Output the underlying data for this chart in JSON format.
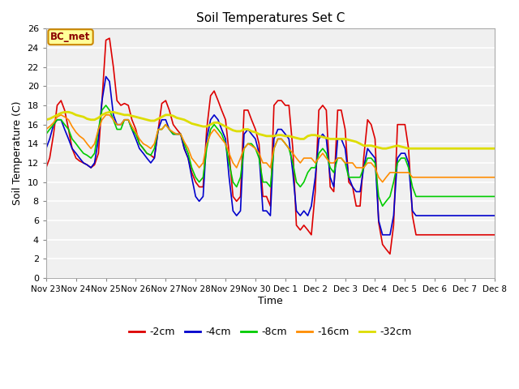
{
  "title": "Soil Temperatures Set C",
  "xlabel": "Time",
  "ylabel": "Soil Temperature (C)",
  "ylim": [
    0,
    26
  ],
  "xlim": [
    0,
    15
  ],
  "fig_bg": "#ffffff",
  "plot_bg": "#f0f0f0",
  "annotation_text": "BC_met",
  "annotation_bg": "#ffff99",
  "annotation_border": "#cc8800",
  "tick_labels": [
    "Nov 23",
    "Nov 24",
    "Nov 25",
    "Nov 26",
    "Nov 27",
    "Nov 28",
    "Nov 29",
    "Nov 30",
    "Dec 1",
    "Dec 2",
    "Dec 3",
    "Dec 4",
    "Dec 5",
    "Dec 6",
    "Dec 7",
    "Dec 8"
  ],
  "series_order": [
    "-2cm",
    "-4cm",
    "-8cm",
    "-16cm",
    "-32cm"
  ],
  "series": {
    "-2cm": {
      "color": "#dd0000",
      "lw": 1.2,
      "x": [
        0,
        0.12,
        0.25,
        0.37,
        0.5,
        0.62,
        0.75,
        0.87,
        1.0,
        1.12,
        1.25,
        1.37,
        1.5,
        1.62,
        1.75,
        1.87,
        2.0,
        2.12,
        2.25,
        2.37,
        2.5,
        2.62,
        2.75,
        2.87,
        3.0,
        3.12,
        3.25,
        3.37,
        3.5,
        3.62,
        3.75,
        3.87,
        4.0,
        4.12,
        4.25,
        4.37,
        4.5,
        4.62,
        4.75,
        4.87,
        5.0,
        5.12,
        5.25,
        5.37,
        5.5,
        5.62,
        5.75,
        5.87,
        6.0,
        6.12,
        6.25,
        6.37,
        6.5,
        6.62,
        6.75,
        6.87,
        7.0,
        7.12,
        7.25,
        7.37,
        7.5,
        7.62,
        7.75,
        7.87,
        8.0,
        8.12,
        8.25,
        8.37,
        8.5,
        8.62,
        8.75,
        8.87,
        9.0,
        9.12,
        9.25,
        9.37,
        9.5,
        9.62,
        9.75,
        9.87,
        10.0,
        10.12,
        10.25,
        10.37,
        10.5,
        10.62,
        10.75,
        10.87,
        11.0,
        11.12,
        11.25,
        11.37,
        11.5,
        11.62,
        11.75,
        11.87,
        12.0,
        12.12,
        12.25,
        12.37,
        12.5,
        12.62,
        12.75,
        12.87,
        13.0,
        13.12,
        13.25,
        13.37,
        13.5,
        13.62,
        13.75,
        13.87,
        14.0,
        14.12,
        14.25,
        14.37,
        14.5,
        14.62,
        14.75,
        14.87,
        15.0
      ],
      "y": [
        11.5,
        12.5,
        15.0,
        18.0,
        18.5,
        17.5,
        15.5,
        13.5,
        12.5,
        12.2,
        12.0,
        11.8,
        11.5,
        11.8,
        13.0,
        18.5,
        24.8,
        25.0,
        22.0,
        18.5,
        18.0,
        18.2,
        18.0,
        16.5,
        15.5,
        14.0,
        13.5,
        13.0,
        12.8,
        12.5,
        15.5,
        18.2,
        18.5,
        17.5,
        16.0,
        15.5,
        15.0,
        13.5,
        12.5,
        11.0,
        10.0,
        9.5,
        9.5,
        15.5,
        19.0,
        19.5,
        18.5,
        17.5,
        16.5,
        13.0,
        8.5,
        8.0,
        8.5,
        17.5,
        17.5,
        16.5,
        15.5,
        14.0,
        8.5,
        8.5,
        7.5,
        18.0,
        18.5,
        18.5,
        18.0,
        18.0,
        13.5,
        5.5,
        5.0,
        5.5,
        5.0,
        4.5,
        9.0,
        17.5,
        18.0,
        17.5,
        9.5,
        9.0,
        17.5,
        17.5,
        15.5,
        10.0,
        9.5,
        7.5,
        7.5,
        12.5,
        16.5,
        16.0,
        14.5,
        5.8,
        3.5,
        3.0,
        2.5,
        5.5,
        16.0,
        16.0,
        16.0,
        13.5,
        6.5,
        4.5,
        4.5,
        4.5,
        4.5,
        4.5,
        4.5,
        4.5,
        4.5,
        4.5,
        4.5,
        4.5,
        4.5,
        4.5,
        4.5,
        4.5,
        4.5,
        4.5,
        4.5,
        4.5,
        4.5,
        4.5,
        4.5
      ]
    },
    "-4cm": {
      "color": "#0000cc",
      "lw": 1.2,
      "x": [
        0,
        0.12,
        0.25,
        0.37,
        0.5,
        0.62,
        0.75,
        0.87,
        1.0,
        1.12,
        1.25,
        1.37,
        1.5,
        1.62,
        1.75,
        1.87,
        2.0,
        2.12,
        2.25,
        2.37,
        2.5,
        2.62,
        2.75,
        2.87,
        3.0,
        3.12,
        3.25,
        3.37,
        3.5,
        3.62,
        3.75,
        3.87,
        4.0,
        4.12,
        4.25,
        4.37,
        4.5,
        4.62,
        4.75,
        4.87,
        5.0,
        5.12,
        5.25,
        5.37,
        5.5,
        5.62,
        5.75,
        5.87,
        6.0,
        6.12,
        6.25,
        6.37,
        6.5,
        6.62,
        6.75,
        6.87,
        7.0,
        7.12,
        7.25,
        7.37,
        7.5,
        7.62,
        7.75,
        7.87,
        8.0,
        8.12,
        8.25,
        8.37,
        8.5,
        8.62,
        8.75,
        8.87,
        9.0,
        9.12,
        9.25,
        9.37,
        9.5,
        9.62,
        9.75,
        9.87,
        10.0,
        10.12,
        10.25,
        10.37,
        10.5,
        10.62,
        10.75,
        10.87,
        11.0,
        11.12,
        11.25,
        11.37,
        11.5,
        11.62,
        11.75,
        11.87,
        12.0,
        12.12,
        12.25,
        12.37,
        12.5,
        12.62,
        12.75,
        12.87,
        13.0,
        13.12,
        13.25,
        13.37,
        13.5,
        13.62,
        13.75,
        13.87,
        14.0,
        14.12,
        14.25,
        14.37,
        14.5,
        14.62,
        14.75,
        14.87,
        15.0
      ],
      "y": [
        13.5,
        14.5,
        16.0,
        16.5,
        16.5,
        15.5,
        14.5,
        13.5,
        13.0,
        12.5,
        12.0,
        11.8,
        11.5,
        12.0,
        14.5,
        18.5,
        21.0,
        20.5,
        17.0,
        16.0,
        16.0,
        16.5,
        16.5,
        15.5,
        14.5,
        13.5,
        13.0,
        12.5,
        12.0,
        12.5,
        15.5,
        16.5,
        16.5,
        15.5,
        15.0,
        15.0,
        15.0,
        13.5,
        12.5,
        10.5,
        8.5,
        8.0,
        8.5,
        14.5,
        16.5,
        17.0,
        16.5,
        15.5,
        14.5,
        10.5,
        7.0,
        6.5,
        7.0,
        15.0,
        15.5,
        15.0,
        14.5,
        13.0,
        7.0,
        7.0,
        6.5,
        14.5,
        15.5,
        15.5,
        15.0,
        14.5,
        11.0,
        7.0,
        6.5,
        7.0,
        6.5,
        7.5,
        10.5,
        14.5,
        15.0,
        14.5,
        10.5,
        9.5,
        14.5,
        14.5,
        13.5,
        10.5,
        9.5,
        9.0,
        9.0,
        11.5,
        13.5,
        13.0,
        12.5,
        6.0,
        4.5,
        4.5,
        4.5,
        6.5,
        12.5,
        13.0,
        13.0,
        12.0,
        7.0,
        6.5,
        6.5,
        6.5,
        6.5,
        6.5,
        6.5,
        6.5,
        6.5,
        6.5,
        6.5,
        6.5,
        6.5,
        6.5,
        6.5,
        6.5,
        6.5,
        6.5,
        6.5,
        6.5,
        6.5,
        6.5,
        6.5
      ]
    },
    "-8cm": {
      "color": "#00cc00",
      "lw": 1.2,
      "x": [
        0,
        0.12,
        0.25,
        0.37,
        0.5,
        0.62,
        0.75,
        0.87,
        1.0,
        1.12,
        1.25,
        1.37,
        1.5,
        1.62,
        1.75,
        1.87,
        2.0,
        2.12,
        2.25,
        2.37,
        2.5,
        2.62,
        2.75,
        2.87,
        3.0,
        3.12,
        3.25,
        3.37,
        3.5,
        3.62,
        3.75,
        3.87,
        4.0,
        4.12,
        4.25,
        4.37,
        4.5,
        4.62,
        4.75,
        4.87,
        5.0,
        5.12,
        5.25,
        5.37,
        5.5,
        5.62,
        5.75,
        5.87,
        6.0,
        6.12,
        6.25,
        6.37,
        6.5,
        6.62,
        6.75,
        6.87,
        7.0,
        7.12,
        7.25,
        7.37,
        7.5,
        7.62,
        7.75,
        7.87,
        8.0,
        8.12,
        8.25,
        8.37,
        8.5,
        8.62,
        8.75,
        8.87,
        9.0,
        9.12,
        9.25,
        9.37,
        9.5,
        9.62,
        9.75,
        9.87,
        10.0,
        10.12,
        10.25,
        10.37,
        10.5,
        10.62,
        10.75,
        10.87,
        11.0,
        11.12,
        11.25,
        11.37,
        11.5,
        11.62,
        11.75,
        11.87,
        12.0,
        12.12,
        12.25,
        12.37,
        12.5,
        12.62,
        12.75,
        12.87,
        13.0,
        13.12,
        13.25,
        13.37,
        13.5,
        13.62,
        13.75,
        13.87,
        14.0,
        14.12,
        14.25,
        14.37,
        14.5,
        14.62,
        14.75,
        14.87,
        15.0
      ],
      "y": [
        15.0,
        15.5,
        16.0,
        16.5,
        16.5,
        16.0,
        15.5,
        14.5,
        14.0,
        13.5,
        13.0,
        12.8,
        12.5,
        13.0,
        15.5,
        17.5,
        18.0,
        17.5,
        16.5,
        15.5,
        15.5,
        16.5,
        16.5,
        15.5,
        15.0,
        14.0,
        13.5,
        13.0,
        12.8,
        13.5,
        15.5,
        15.5,
        16.0,
        15.5,
        15.0,
        15.0,
        15.0,
        14.0,
        13.0,
        11.5,
        10.5,
        10.0,
        10.5,
        13.5,
        15.5,
        16.0,
        15.5,
        15.0,
        14.0,
        12.0,
        10.0,
        9.5,
        10.5,
        13.5,
        14.0,
        14.0,
        13.5,
        12.5,
        10.0,
        10.0,
        9.5,
        13.5,
        14.5,
        14.5,
        14.0,
        13.5,
        12.0,
        10.0,
        9.5,
        10.0,
        11.0,
        11.5,
        11.5,
        13.0,
        13.5,
        13.0,
        11.5,
        11.0,
        12.5,
        12.5,
        12.0,
        10.5,
        10.5,
        10.5,
        10.5,
        11.5,
        12.5,
        12.5,
        12.0,
        8.5,
        7.5,
        8.0,
        8.5,
        10.0,
        12.0,
        12.5,
        12.5,
        11.5,
        9.5,
        8.5,
        8.5,
        8.5,
        8.5,
        8.5,
        8.5,
        8.5,
        8.5,
        8.5,
        8.5,
        8.5,
        8.5,
        8.5,
        8.5,
        8.5,
        8.5,
        8.5,
        8.5,
        8.5,
        8.5,
        8.5,
        8.5
      ]
    },
    "-16cm": {
      "color": "#ff8c00",
      "lw": 1.2,
      "x": [
        0,
        0.12,
        0.25,
        0.37,
        0.5,
        0.62,
        0.75,
        0.87,
        1.0,
        1.12,
        1.25,
        1.37,
        1.5,
        1.62,
        1.75,
        1.87,
        2.0,
        2.12,
        2.25,
        2.37,
        2.5,
        2.62,
        2.75,
        2.87,
        3.0,
        3.12,
        3.25,
        3.37,
        3.5,
        3.62,
        3.75,
        3.87,
        4.0,
        4.12,
        4.25,
        4.37,
        4.5,
        4.62,
        4.75,
        4.87,
        5.0,
        5.12,
        5.25,
        5.37,
        5.5,
        5.62,
        5.75,
        5.87,
        6.0,
        6.12,
        6.25,
        6.37,
        6.5,
        6.62,
        6.75,
        6.87,
        7.0,
        7.12,
        7.25,
        7.37,
        7.5,
        7.62,
        7.75,
        7.87,
        8.0,
        8.12,
        8.25,
        8.37,
        8.5,
        8.62,
        8.75,
        8.87,
        9.0,
        9.12,
        9.25,
        9.37,
        9.5,
        9.62,
        9.75,
        9.87,
        10.0,
        10.12,
        10.25,
        10.37,
        10.5,
        10.62,
        10.75,
        10.87,
        11.0,
        11.12,
        11.25,
        11.37,
        11.5,
        11.62,
        11.75,
        11.87,
        12.0,
        12.12,
        12.25,
        12.37,
        12.5,
        12.62,
        12.75,
        12.87,
        13.0,
        13.12,
        13.25,
        13.37,
        13.5,
        13.62,
        13.75,
        13.87,
        14.0,
        14.12,
        14.25,
        14.37,
        14.5,
        14.62,
        14.75,
        14.87,
        15.0
      ],
      "y": [
        15.5,
        15.8,
        16.2,
        16.8,
        17.0,
        16.8,
        16.5,
        15.8,
        15.2,
        14.8,
        14.5,
        14.0,
        13.5,
        14.0,
        15.5,
        16.5,
        17.0,
        17.0,
        16.5,
        16.0,
        16.0,
        16.5,
        16.5,
        15.8,
        15.2,
        14.5,
        14.0,
        13.8,
        13.5,
        14.0,
        15.5,
        15.5,
        16.0,
        15.5,
        15.2,
        15.0,
        15.0,
        14.2,
        13.5,
        12.5,
        12.0,
        11.5,
        12.0,
        14.0,
        15.0,
        15.5,
        15.0,
        14.5,
        14.0,
        13.0,
        12.0,
        11.5,
        12.5,
        13.5,
        14.0,
        13.8,
        13.5,
        13.0,
        12.0,
        12.0,
        11.5,
        13.5,
        14.5,
        14.5,
        14.0,
        13.5,
        13.0,
        12.5,
        12.0,
        12.5,
        12.5,
        12.5,
        12.0,
        12.5,
        13.0,
        12.5,
        12.0,
        12.0,
        12.5,
        12.5,
        12.0,
        12.0,
        12.0,
        11.5,
        11.5,
        11.5,
        12.0,
        12.0,
        11.5,
        10.5,
        10.0,
        10.5,
        11.0,
        11.0,
        11.0,
        11.0,
        11.0,
        11.0,
        10.5,
        10.5,
        10.5,
        10.5,
        10.5,
        10.5,
        10.5,
        10.5,
        10.5,
        10.5,
        10.5,
        10.5,
        10.5,
        10.5,
        10.5,
        10.5,
        10.5,
        10.5,
        10.5,
        10.5,
        10.5,
        10.5,
        10.5
      ]
    },
    "-32cm": {
      "color": "#dddd00",
      "lw": 2.0,
      "x": [
        0,
        0.12,
        0.25,
        0.37,
        0.5,
        0.62,
        0.75,
        0.87,
        1.0,
        1.12,
        1.25,
        1.37,
        1.5,
        1.62,
        1.75,
        1.87,
        2.0,
        2.12,
        2.25,
        2.37,
        2.5,
        2.62,
        2.75,
        2.87,
        3.0,
        3.12,
        3.25,
        3.37,
        3.5,
        3.62,
        3.75,
        3.87,
        4.0,
        4.12,
        4.25,
        4.37,
        4.5,
        4.62,
        4.75,
        4.87,
        5.0,
        5.12,
        5.25,
        5.37,
        5.5,
        5.62,
        5.75,
        5.87,
        6.0,
        6.12,
        6.25,
        6.37,
        6.5,
        6.62,
        6.75,
        6.87,
        7.0,
        7.12,
        7.25,
        7.37,
        7.5,
        7.62,
        7.75,
        7.87,
        8.0,
        8.12,
        8.25,
        8.37,
        8.5,
        8.62,
        8.75,
        8.87,
        9.0,
        9.12,
        9.25,
        9.37,
        9.5,
        9.62,
        9.75,
        9.87,
        10.0,
        10.12,
        10.25,
        10.37,
        10.5,
        10.62,
        10.75,
        10.87,
        11.0,
        11.12,
        11.25,
        11.37,
        11.5,
        11.62,
        11.75,
        11.87,
        12.0,
        12.12,
        12.25,
        12.37,
        12.5,
        12.62,
        12.75,
        12.87,
        13.0,
        13.12,
        13.25,
        13.37,
        13.5,
        13.62,
        13.75,
        13.87,
        14.0,
        14.12,
        14.25,
        14.37,
        14.5,
        14.62,
        14.75,
        14.87,
        15.0
      ],
      "y": [
        16.5,
        16.6,
        16.8,
        17.0,
        17.2,
        17.3,
        17.3,
        17.2,
        17.0,
        16.9,
        16.8,
        16.6,
        16.5,
        16.5,
        16.7,
        17.0,
        17.2,
        17.3,
        17.3,
        17.2,
        17.1,
        17.0,
        17.0,
        16.9,
        16.8,
        16.7,
        16.6,
        16.5,
        16.4,
        16.4,
        16.6,
        16.8,
        17.0,
        17.0,
        16.9,
        16.7,
        16.6,
        16.5,
        16.3,
        16.1,
        16.0,
        15.9,
        15.8,
        15.8,
        16.0,
        16.2,
        16.2,
        16.0,
        15.8,
        15.6,
        15.4,
        15.3,
        15.3,
        15.5,
        15.5,
        15.3,
        15.2,
        15.0,
        14.9,
        14.8,
        14.8,
        14.8,
        14.9,
        14.9,
        14.8,
        14.8,
        14.7,
        14.6,
        14.5,
        14.5,
        14.8,
        14.9,
        14.9,
        14.8,
        14.7,
        14.6,
        14.5,
        14.5,
        14.5,
        14.5,
        14.5,
        14.4,
        14.3,
        14.2,
        14.0,
        13.8,
        13.8,
        13.8,
        13.7,
        13.6,
        13.5,
        13.5,
        13.6,
        13.7,
        13.8,
        13.7,
        13.6,
        13.5,
        13.5,
        13.5,
        13.5,
        13.5,
        13.5,
        13.5,
        13.5,
        13.5,
        13.5,
        13.5,
        13.5,
        13.5,
        13.5,
        13.5,
        13.5,
        13.5,
        13.5,
        13.5,
        13.5,
        13.5,
        13.5,
        13.5,
        13.5
      ]
    }
  }
}
